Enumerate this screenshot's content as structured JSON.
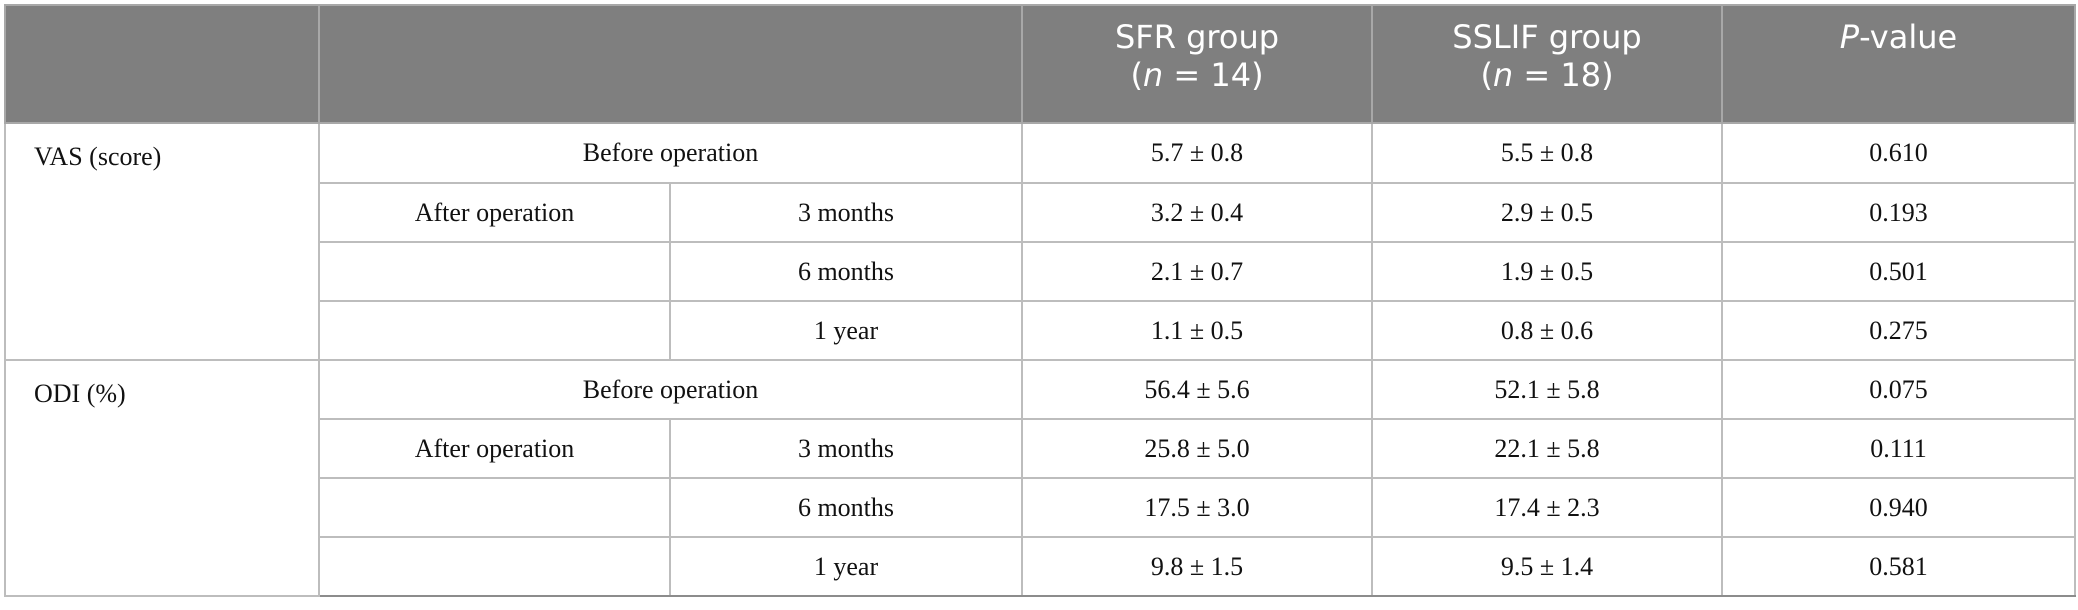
{
  "header": {
    "col1": "",
    "col2": "",
    "sfr_line1": "SFR group",
    "sfr_n_italic": "n",
    "sfr_n_rest": " = 14)",
    "sslif_line1": "SSLIF group",
    "sslif_n_italic": "n",
    "sslif_n_rest": " = 18)",
    "p_italic": "P",
    "p_rest": "-value"
  },
  "groups": [
    {
      "label": "VAS (score)",
      "before_label": "Before operation",
      "before": {
        "sfr": "5.7 ± 0.8",
        "sslif": "5.5 ± 0.8",
        "p": "0.610"
      },
      "after_label": "After operation",
      "after": [
        {
          "time": "3 months",
          "sfr": "3.2 ± 0.4",
          "sslif": "2.9 ± 0.5",
          "p": "0.193"
        },
        {
          "time": "6 months",
          "sfr": "2.1 ± 0.7",
          "sslif": "1.9 ± 0.5",
          "p": "0.501"
        },
        {
          "time": "1 year",
          "sfr": "1.1 ± 0.5",
          "sslif": "0.8 ± 0.6",
          "p": "0.275"
        }
      ]
    },
    {
      "label": "ODI (%)",
      "before_label": "Before operation",
      "before": {
        "sfr": "56.4 ± 5.6",
        "sslif": "52.1 ± 5.8",
        "p": "0.075"
      },
      "after_label": "After operation",
      "after": [
        {
          "time": "3 months",
          "sfr": "25.8 ± 5.0",
          "sslif": "22.1 ± 5.8",
          "p": "0.111"
        },
        {
          "time": "6 months",
          "sfr": "17.5 ± 3.0",
          "sslif": "17.4 ± 2.3",
          "p": "0.940"
        },
        {
          "time": "1 year",
          "sfr": "9.8 ± 1.5",
          "sslif": "9.5 ± 1.4",
          "p": "0.581"
        }
      ]
    }
  ],
  "colors": {
    "header_bg": "#7f7f7f",
    "header_text": "#ffffff",
    "border": "#bdbdbd"
  }
}
